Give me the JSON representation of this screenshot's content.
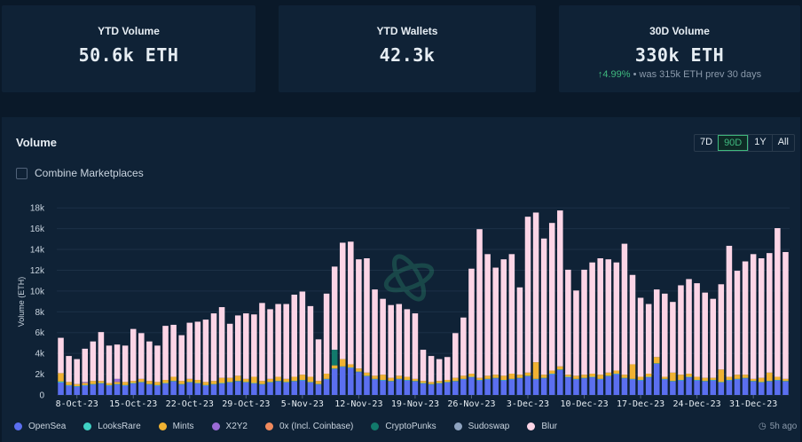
{
  "cards": [
    {
      "title": "YTD Volume",
      "value": "50.6k ETH"
    },
    {
      "title": "YTD Wallets",
      "value": "42.3k"
    },
    {
      "title": "30D Volume",
      "value": "330k ETH",
      "change": "4.99%",
      "sub": "was 315k ETH prev 30 days"
    }
  ],
  "panel": {
    "title": "Volume",
    "ranges": [
      "7D",
      "90D",
      "1Y",
      "All"
    ],
    "active_range": "90D",
    "combine_label": "Combine Marketplaces",
    "updated": "5h ago"
  },
  "chart_data": {
    "type": "bar",
    "stacked": true,
    "ylabel": "Volume (ETH)",
    "ylim": [
      0,
      19000
    ],
    "yticks": [
      0,
      2000,
      4000,
      6000,
      8000,
      10000,
      12000,
      14000,
      16000,
      18000
    ],
    "ytick_labels": [
      "0",
      "2k",
      "4k",
      "6k",
      "8k",
      "10k",
      "12k",
      "14k",
      "16k",
      "18k"
    ],
    "xtick_labels": [
      {
        "index": 2,
        "label": "8-Oct-23"
      },
      {
        "index": 9,
        "label": "15-Oct-23"
      },
      {
        "index": 16,
        "label": "22-Oct-23"
      },
      {
        "index": 23,
        "label": "29-Oct-23"
      },
      {
        "index": 30,
        "label": "5-Nov-23"
      },
      {
        "index": 37,
        "label": "12-Nov-23"
      },
      {
        "index": 44,
        "label": "19-Nov-23"
      },
      {
        "index": 51,
        "label": "26-Nov-23"
      },
      {
        "index": 58,
        "label": "3-Dec-23"
      },
      {
        "index": 65,
        "label": "10-Dec-23"
      },
      {
        "index": 72,
        "label": "17-Dec-23"
      },
      {
        "index": 79,
        "label": "24-Dec-23"
      },
      {
        "index": 86,
        "label": "31-Dec-23"
      }
    ],
    "series": [
      {
        "name": "OpenSea",
        "color": "#5b6ff0",
        "values": [
          1200,
          900,
          800,
          900,
          1000,
          1100,
          900,
          1000,
          900,
          1100,
          1200,
          1000,
          900,
          1100,
          1300,
          1000,
          1200,
          1100,
          900,
          1000,
          1100,
          1200,
          1300,
          1200,
          1100,
          1000,
          1200,
          1300,
          1200,
          1300,
          1400,
          1200,
          1000,
          1500,
          2500,
          2700,
          2600,
          2200,
          1800,
          1500,
          1400,
          1300,
          1500,
          1400,
          1300,
          1100,
          1000,
          1100,
          1200,
          1300,
          1500,
          1700,
          1400,
          1500,
          1600,
          1400,
          1500,
          1600,
          1800,
          1500,
          1600,
          2000,
          2400,
          1700,
          1500,
          1600,
          1700,
          1500,
          1800,
          2000,
          1600,
          1500,
          1400,
          1700,
          3000,
          1500,
          1300,
          1400,
          1700,
          1400,
          1300,
          1400,
          1200,
          1400,
          1500,
          1600,
          1300,
          1200,
          1300,
          1400,
          1300
        ]
      },
      {
        "name": "LooksRare",
        "color": "#3fd1c4",
        "values": [
          100,
          50,
          50,
          50,
          50,
          50,
          50,
          50,
          50,
          50,
          50,
          50,
          50,
          50,
          50,
          50,
          50,
          50,
          50,
          50,
          50,
          50,
          50,
          50,
          50,
          50,
          50,
          50,
          50,
          50,
          50,
          50,
          50,
          50,
          50,
          50,
          50,
          50,
          50,
          50,
          50,
          50,
          50,
          50,
          50,
          50,
          50,
          50,
          50,
          50,
          50,
          50,
          50,
          50,
          50,
          50,
          50,
          50,
          50,
          50,
          50,
          50,
          50,
          50,
          50,
          50,
          50,
          50,
          50,
          50,
          50,
          50,
          50,
          50,
          50,
          50,
          50,
          50,
          50,
          50,
          50,
          50,
          50,
          50,
          50,
          50,
          50,
          50,
          50,
          50,
          50
        ]
      },
      {
        "name": "Mints",
        "color": "#f0b232",
        "values": [
          800,
          300,
          200,
          200,
          300,
          200,
          200,
          200,
          300,
          200,
          300,
          300,
          300,
          300,
          400,
          300,
          300,
          300,
          300,
          300,
          500,
          400,
          500,
          300,
          600,
          300,
          300,
          400,
          300,
          400,
          500,
          500,
          300,
          500,
          300,
          700,
          300,
          300,
          300,
          300,
          500,
          300,
          300,
          300,
          200,
          200,
          200,
          200,
          200,
          300,
          300,
          300,
          200,
          300,
          300,
          400,
          500,
          300,
          300,
          1600,
          300,
          300,
          300,
          200,
          300,
          300,
          300,
          400,
          300,
          300,
          300,
          1400,
          300,
          300,
          600,
          200,
          800,
          500,
          300,
          300,
          300,
          200,
          1200,
          300,
          400,
          300,
          200,
          400,
          800,
          300,
          200
        ]
      },
      {
        "name": "X2Y2",
        "color": "#9b6bd6",
        "values": [
          0,
          0,
          0,
          100,
          0,
          0,
          0,
          300,
          0,
          0,
          0,
          0,
          0,
          0,
          0,
          0,
          0,
          0,
          0,
          0,
          0,
          0,
          0,
          0,
          0,
          0,
          0,
          0,
          0,
          0,
          0,
          0,
          0,
          0,
          0,
          0,
          0,
          0,
          0,
          0,
          0,
          0,
          0,
          0,
          0,
          0,
          0,
          0,
          0,
          0,
          0,
          0,
          0,
          0,
          0,
          0,
          0,
          0,
          0,
          0,
          0,
          0,
          0,
          0,
          0,
          0,
          0,
          0,
          0,
          0,
          0,
          0,
          0,
          0,
          0,
          0,
          0,
          0,
          0,
          0,
          0,
          0,
          0,
          0,
          0,
          0,
          0,
          0,
          0,
          0,
          0
        ]
      },
      {
        "name": "0x (Incl. Coinbase)",
        "color": "#f08a5d",
        "values": [
          0,
          0,
          0,
          0,
          0,
          0,
          0,
          0,
          0,
          0,
          0,
          0,
          0,
          0,
          0,
          0,
          0,
          0,
          0,
          0,
          0,
          0,
          0,
          0,
          0,
          0,
          0,
          0,
          0,
          0,
          0,
          0,
          0,
          0,
          0,
          0,
          0,
          0,
          0,
          0,
          0,
          0,
          0,
          0,
          0,
          0,
          0,
          0,
          0,
          0,
          0,
          0,
          0,
          0,
          0,
          0,
          0,
          0,
          0,
          0,
          0,
          0,
          0,
          0,
          0,
          0,
          0,
          0,
          0,
          0,
          0,
          0,
          0,
          0,
          0,
          0,
          0,
          0,
          0,
          0,
          0,
          0,
          0,
          0,
          0,
          0,
          0,
          0,
          0,
          0,
          0
        ]
      },
      {
        "name": "CryptoPunks",
        "color": "#127a6c",
        "values": [
          0,
          0,
          0,
          0,
          0,
          0,
          0,
          0,
          0,
          0,
          0,
          0,
          0,
          0,
          0,
          0,
          0,
          0,
          0,
          0,
          0,
          0,
          0,
          0,
          0,
          0,
          0,
          0,
          0,
          0,
          0,
          0,
          0,
          0,
          1500,
          0,
          0,
          0,
          0,
          0,
          0,
          0,
          0,
          0,
          0,
          0,
          0,
          0,
          0,
          0,
          0,
          0,
          0,
          0,
          0,
          0,
          0,
          0,
          0,
          0,
          0,
          0,
          0,
          0,
          0,
          0,
          0,
          0,
          0,
          0,
          0,
          0,
          0,
          0,
          0,
          0,
          0,
          0,
          0,
          0,
          0,
          0,
          0,
          0,
          0,
          0,
          0,
          0,
          0,
          0,
          0
        ]
      },
      {
        "name": "Sudoswap",
        "color": "#8ea3c0",
        "values": [
          0,
          0,
          0,
          0,
          0,
          0,
          0,
          0,
          0,
          0,
          0,
          0,
          0,
          0,
          0,
          0,
          0,
          0,
          0,
          0,
          0,
          0,
          0,
          0,
          0,
          0,
          0,
          0,
          0,
          0,
          0,
          0,
          0,
          0,
          0,
          0,
          0,
          0,
          0,
          0,
          0,
          0,
          0,
          0,
          0,
          0,
          0,
          0,
          0,
          0,
          0,
          0,
          0,
          0,
          0,
          0,
          0,
          0,
          0,
          0,
          0,
          0,
          0,
          0,
          0,
          0,
          0,
          0,
          0,
          0,
          0,
          0,
          0,
          0,
          0,
          0,
          0,
          0,
          0,
          0,
          0,
          0,
          0,
          0,
          0,
          0,
          0,
          0,
          0,
          0,
          0
        ]
      },
      {
        "name": "Blur",
        "color": "#fcd5e6",
        "values": [
          3400,
          2500,
          2400,
          3200,
          3800,
          4700,
          3600,
          3300,
          3500,
          5000,
          4400,
          3800,
          3500,
          5200,
          5000,
          4400,
          5400,
          5600,
          6000,
          6500,
          6800,
          5200,
          5800,
          6300,
          6000,
          7500,
          6700,
          7000,
          7200,
          7900,
          8000,
          6800,
          4000,
          7700,
          8000,
          11200,
          11800,
          10500,
          11000,
          8300,
          7300,
          7000,
          6900,
          6500,
          6300,
          3000,
          2500,
          2100,
          2200,
          4300,
          5600,
          10100,
          14300,
          11700,
          10300,
          11200,
          11500,
          8400,
          15000,
          14400,
          13100,
          14200,
          15000,
          10100,
          8200,
          10100,
          10700,
          11200,
          10900,
          10400,
          12600,
          8600,
          7600,
          6700,
          6500,
          8000,
          6800,
          8600,
          9100,
          9000,
          8200,
          7600,
          8200,
          12600,
          10000,
          10900,
          12000,
          11500,
          11500,
          14300,
          12200
        ]
      }
    ]
  }
}
